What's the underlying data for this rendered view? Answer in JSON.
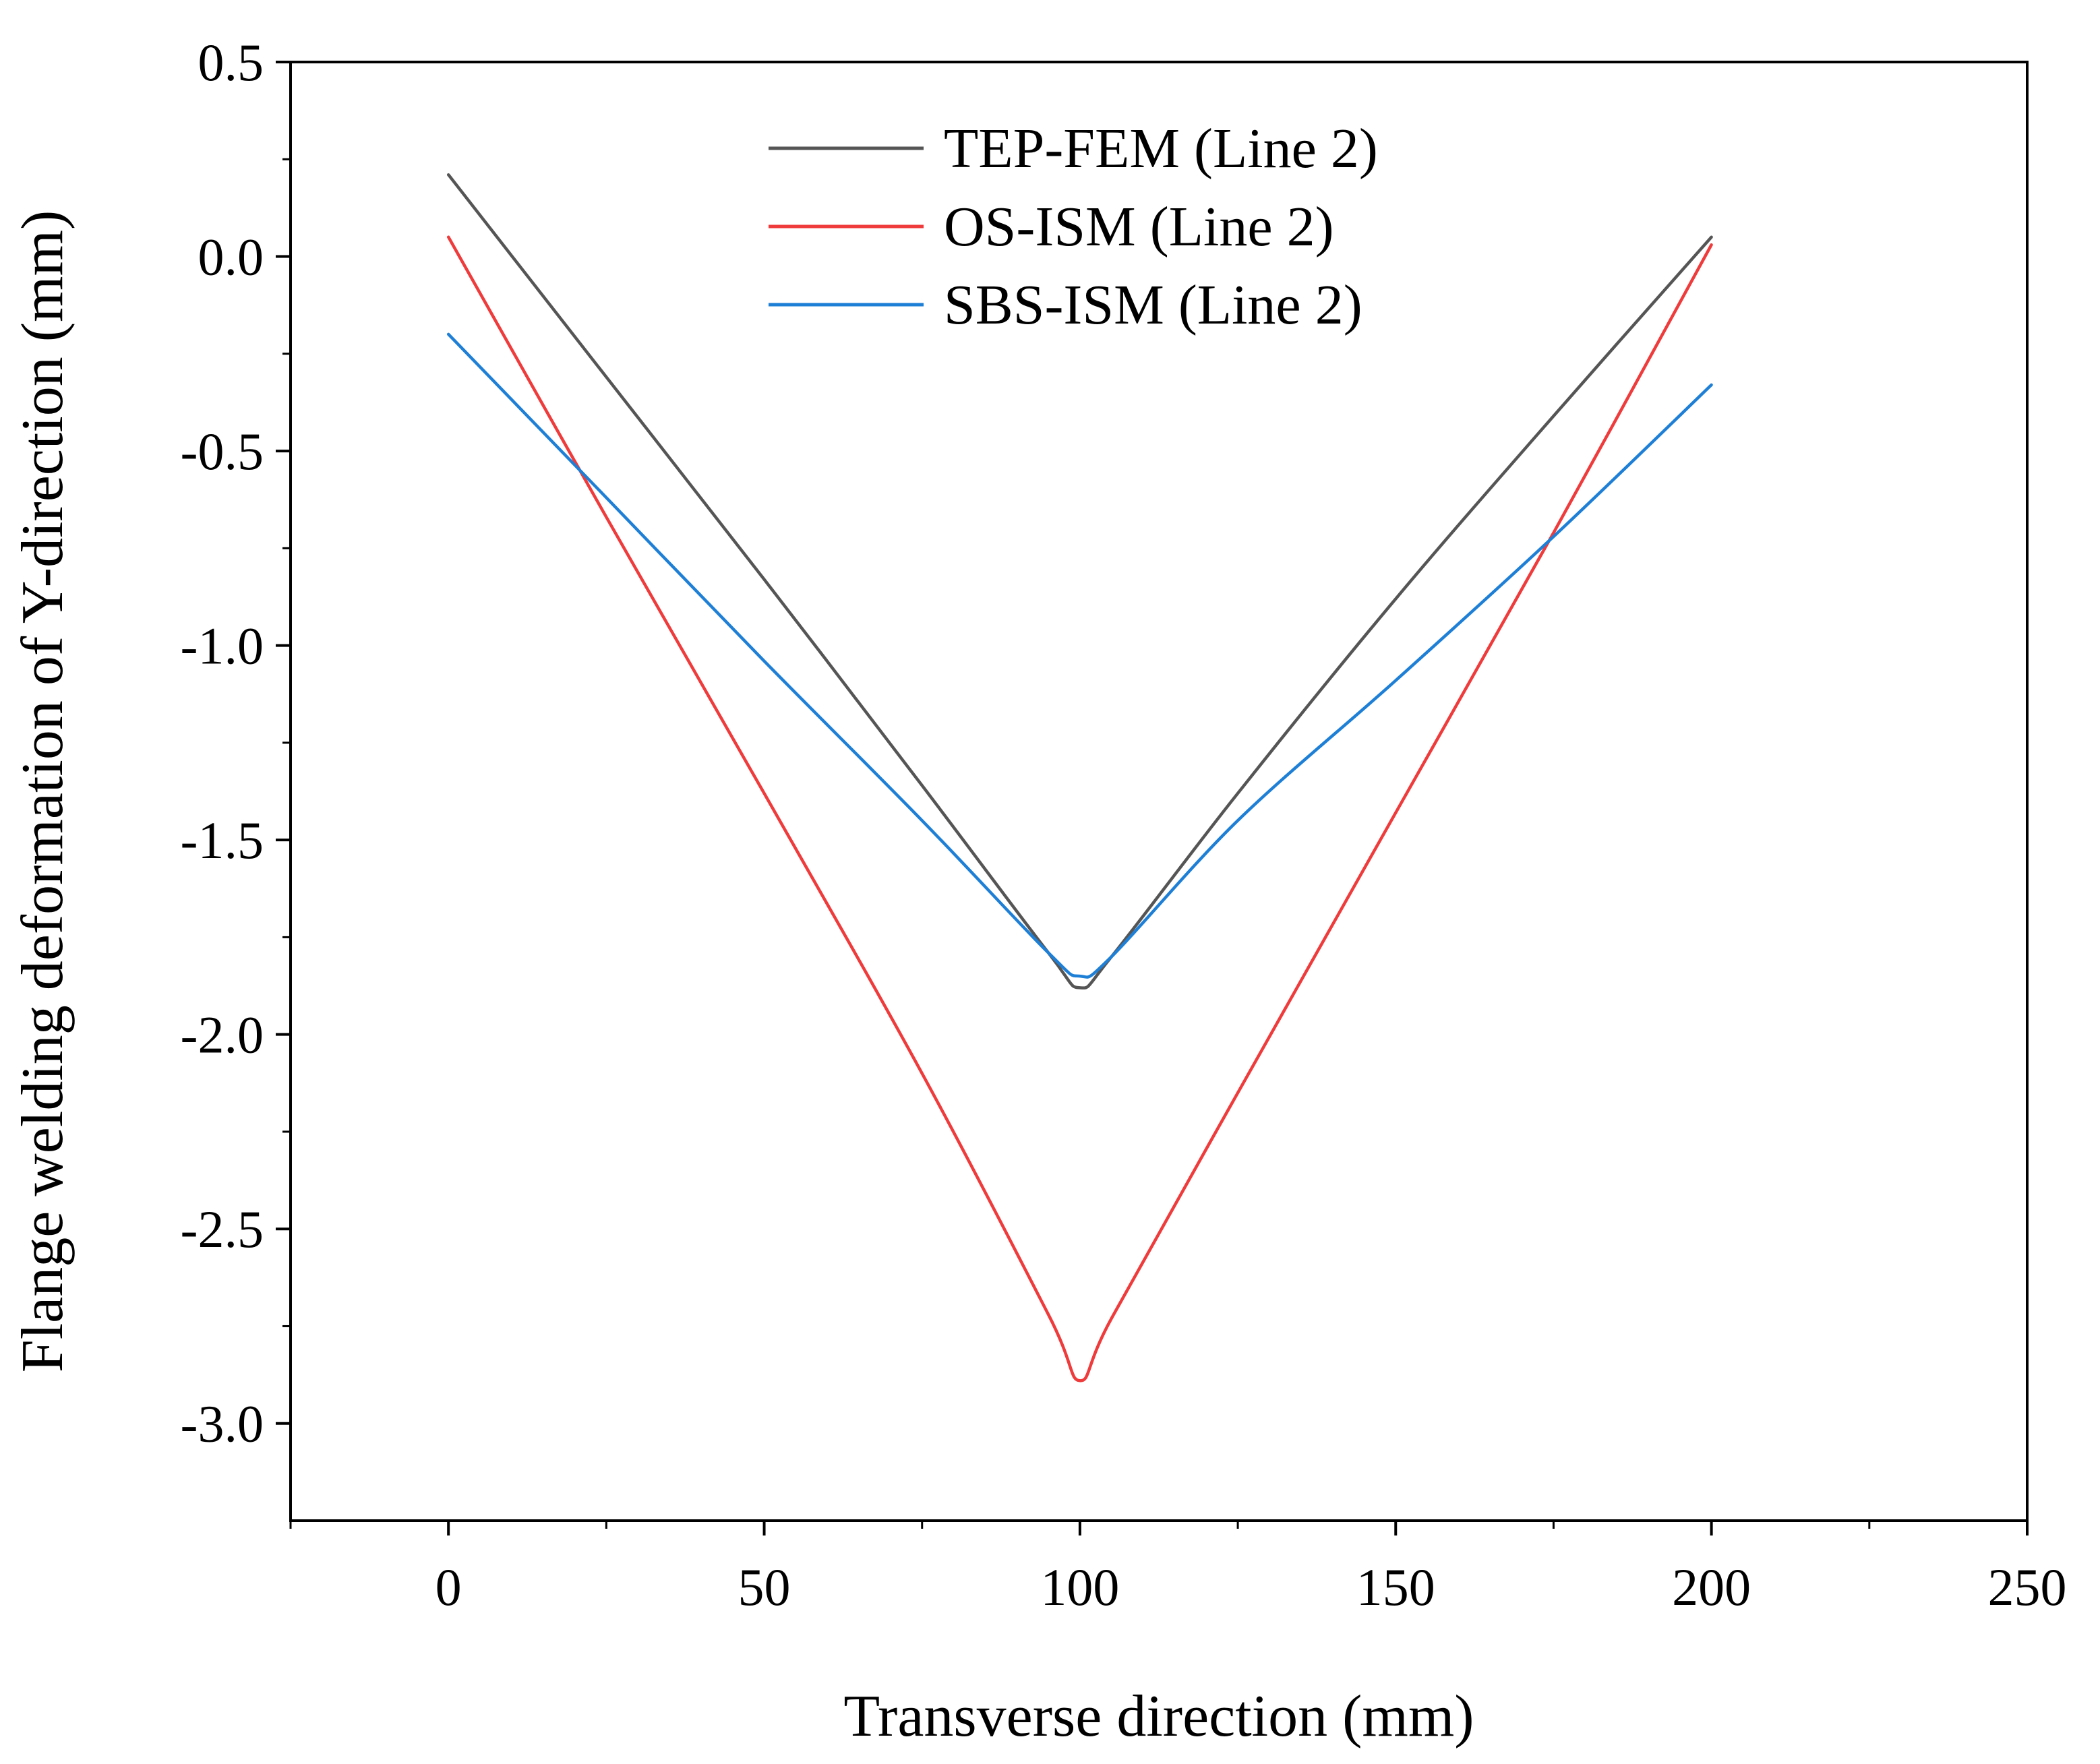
{
  "chart_data": {
    "type": "line",
    "title": "",
    "xlabel": "Transverse direction (mm)",
    "ylabel": "Flange welding deformation of Y-direction (mm)",
    "xlim": [
      -25,
      250
    ],
    "ylim": [
      -3.25,
      0.5
    ],
    "x_ticks": [
      0,
      50,
      100,
      150,
      200,
      250
    ],
    "y_ticks": [
      0.5,
      0.0,
      -0.5,
      -1.0,
      -1.5,
      -2.0,
      -2.5,
      -3.0
    ],
    "x_tick_labels": [
      "0",
      "50",
      "100",
      "150",
      "200",
      "250"
    ],
    "y_tick_labels": [
      "0.5",
      "0.0",
      "-0.5",
      "-1.0",
      "-1.5",
      "-2.0",
      "-2.5",
      "-3.0"
    ],
    "grid": false,
    "legend_position": "top-center",
    "series": [
      {
        "name": "TEP-FEM (Line 2)",
        "color": "#555555",
        "x": [
          0,
          25,
          50,
          75,
          95,
          100,
          105,
          125,
          150,
          175,
          200
        ],
        "y": [
          0.21,
          -0.31,
          -0.83,
          -1.36,
          -1.79,
          -1.88,
          -1.8,
          -1.38,
          -0.88,
          -0.41,
          0.05
        ]
      },
      {
        "name": "OS-ISM (Line 2)",
        "color": "#ef3b3b",
        "x": [
          0,
          25,
          50,
          75,
          95,
          100,
          105,
          125,
          150,
          175,
          200
        ],
        "y": [
          0.05,
          -0.67,
          -1.38,
          -2.1,
          -2.72,
          -2.89,
          -2.73,
          -2.15,
          -1.43,
          -0.71,
          0.03
        ]
      },
      {
        "name": "SBS-ISM (Line 2)",
        "color": "#1e7fd6",
        "x": [
          0,
          25,
          50,
          75,
          95,
          100,
          105,
          125,
          150,
          175,
          200
        ],
        "y": [
          -0.2,
          -0.62,
          -1.04,
          -1.45,
          -1.79,
          -1.85,
          -1.8,
          -1.45,
          -1.09,
          -0.72,
          -0.33
        ]
      }
    ]
  }
}
